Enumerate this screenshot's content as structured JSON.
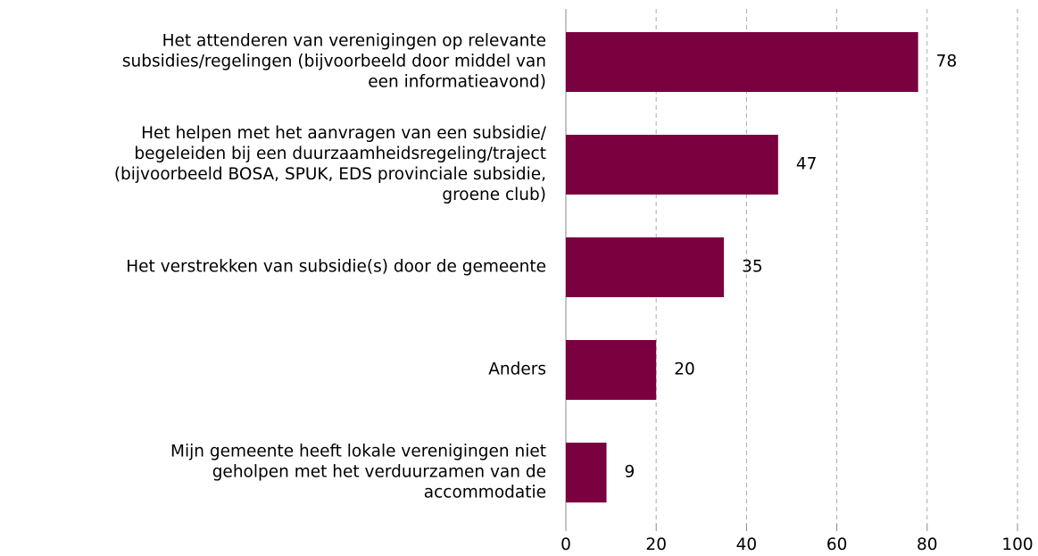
{
  "chart_data": {
    "type": "bar",
    "orientation": "horizontal",
    "categories": [
      [
        "Het attenderen van verenigingen op relevante",
        "subsidies/regelingen (bijvoorbeeld door middel van",
        "een informatieavond)"
      ],
      [
        "Het helpen met het aanvragen van een subsidie/",
        "begeleiden bij een duurzaamheidsregeling/traject",
        "(bijvoorbeeld BOSA, SPUK, EDS provinciale subsidie,",
        "groene club)"
      ],
      [
        "Het verstrekken van subsidie(s) door de gemeente"
      ],
      [
        "Anders"
      ],
      [
        "Mijn gemeente heeft lokale verenigingen niet",
        "geholpen met het verduurzamen van de",
        "accommodatie"
      ]
    ],
    "values": [
      78,
      47,
      35,
      20,
      9
    ],
    "color": "#7b0040",
    "xlim": [
      0,
      100
    ],
    "xticks": [
      0,
      20,
      40,
      60,
      80,
      100
    ],
    "grid": true
  }
}
